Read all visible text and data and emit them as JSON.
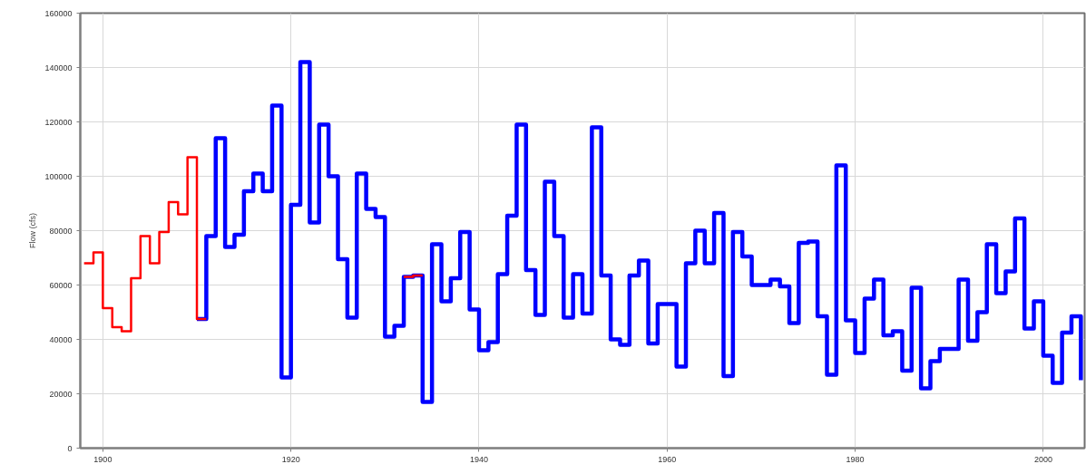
{
  "chart_data": {
    "type": "step",
    "ylabel": "Flow (cfs)",
    "xlim": [
      1897.6,
      2004.4
    ],
    "ylim": [
      0,
      160000
    ],
    "xticks": [
      1900,
      1920,
      1940,
      1960,
      1980,
      2000
    ],
    "yticks": [
      0,
      20000,
      40000,
      60000,
      80000,
      100000,
      120000,
      140000,
      160000
    ],
    "grid": true,
    "series": [
      {
        "color": "#0000ff",
        "x": [
          1910,
          1911,
          1912,
          1913,
          1914,
          1915,
          1916,
          1917,
          1918,
          1919,
          1920,
          1921,
          1922,
          1923,
          1924,
          1925,
          1926,
          1927,
          1928,
          1929,
          1930,
          1931,
          1932,
          1933,
          1934,
          1935,
          1936,
          1937,
          1938,
          1939,
          1940,
          1941,
          1942,
          1943,
          1944,
          1945,
          1946,
          1947,
          1948,
          1949,
          1950,
          1951,
          1952,
          1953,
          1954,
          1955,
          1956,
          1957,
          1958,
          1959,
          1960,
          1961,
          1962,
          1963,
          1964,
          1965,
          1966,
          1967,
          1968,
          1969,
          1970,
          1971,
          1972,
          1973,
          1974,
          1975,
          1976,
          1977,
          1978,
          1979,
          1980,
          1981,
          1982,
          1983,
          1984,
          1985,
          1986,
          1987,
          1988,
          1989,
          1990,
          1991,
          1992,
          1993,
          1994,
          1995,
          1996,
          1997,
          1998,
          1999,
          2000,
          2001,
          2002,
          2003,
          2004
        ],
        "values": [
          47500,
          78000,
          114000,
          74000,
          78500,
          94500,
          101000,
          94500,
          126000,
          26000,
          89500,
          142000,
          83000,
          119000,
          100000,
          69500,
          48000,
          101000,
          88000,
          85000,
          41000,
          45000,
          63000,
          63500,
          17000,
          75000,
          54000,
          62500,
          79500,
          51000,
          36000,
          39000,
          64000,
          85500,
          119000,
          65500,
          49000,
          98000,
          78000,
          48000,
          64000,
          49500,
          118000,
          63500,
          40000,
          38000,
          63500,
          69000,
          38500,
          53000,
          53000,
          30000,
          68000,
          80000,
          68000,
          86500,
          26500,
          79500,
          70500,
          60000,
          60000,
          62000,
          59500,
          46000,
          75500,
          76000,
          48500,
          27000,
          104000,
          47000,
          35000,
          55000,
          62000,
          41500,
          43000,
          28500,
          59000,
          22000,
          32000,
          36500,
          36500,
          62000,
          39500,
          50000,
          75000,
          57000,
          65000,
          84500,
          44000,
          54000,
          34000,
          24000,
          42500,
          48500,
          25000
        ]
      },
      {
        "color": "#ff0000",
        "x": [
          1898,
          1899,
          1900,
          1901,
          1902,
          1903,
          1904,
          1905,
          1906,
          1907,
          1908,
          1909,
          1910,
          1911
        ],
        "values": [
          68000,
          72000,
          51500,
          44500,
          43000,
          62500,
          78000,
          68000,
          79500,
          90500,
          86000,
          107000,
          47500,
          47500
        ]
      },
      {
        "color": "#ff0000",
        "x": [
          1932,
          1933,
          1934
        ],
        "values": [
          63000,
          63500,
          63500
        ]
      }
    ]
  }
}
